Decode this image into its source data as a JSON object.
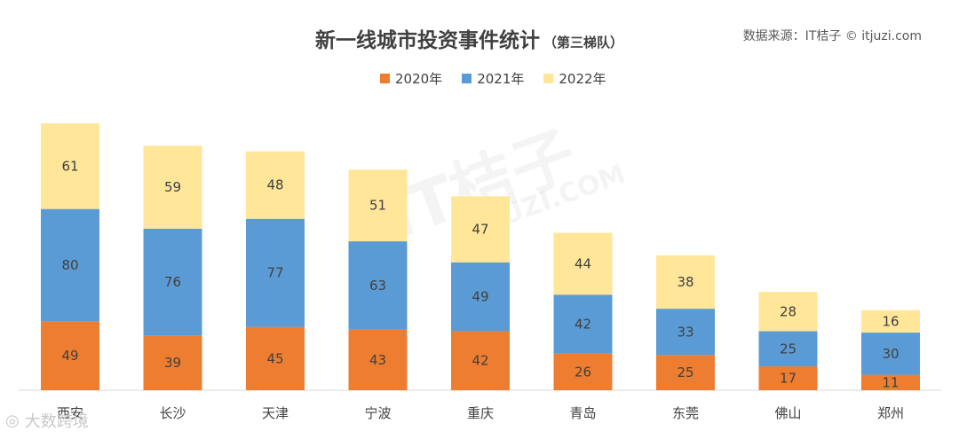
{
  "chart_data": {
    "type": "bar",
    "stacked": true,
    "title": "新一线城市投资事件统计",
    "subtitle": "（第三梯队）",
    "source": "数据来源：IT桔子 © itjuzi.com",
    "categories": [
      "西安",
      "长沙",
      "天津",
      "宁波",
      "重庆",
      "青岛",
      "东莞",
      "佛山",
      "郑州"
    ],
    "series": [
      {
        "name": "2020年",
        "color": "#ED7D31",
        "values": [
          49,
          39,
          45,
          43,
          42,
          26,
          25,
          17,
          11
        ]
      },
      {
        "name": "2021年",
        "color": "#5B9BD5",
        "values": [
          80,
          76,
          77,
          63,
          49,
          42,
          33,
          25,
          30
        ]
      },
      {
        "name": "2022年",
        "color": "#FFE699",
        "values": [
          61,
          59,
          48,
          51,
          47,
          44,
          38,
          28,
          16
        ]
      }
    ],
    "ylim": [
      0,
      190
    ],
    "legend": "top-center",
    "grid": false
  },
  "watermarks": {
    "center": "IT桔子",
    "center_sub": "ITJUZI.COM",
    "corner": "大数跨境"
  }
}
